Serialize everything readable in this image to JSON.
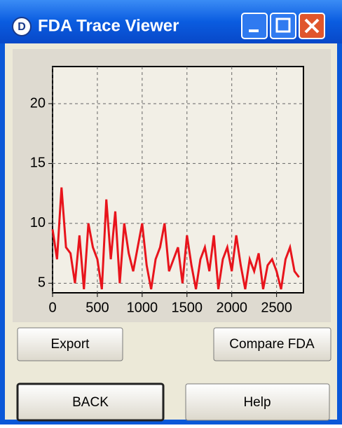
{
  "window": {
    "title": "FDA Trace Viewer",
    "icon_label": "D"
  },
  "buttons": {
    "export": "Export",
    "compare": "Compare FDA",
    "back": "BACK",
    "help": "Help"
  },
  "chart_data": {
    "type": "line",
    "x": [
      0,
      50,
      100,
      150,
      200,
      250,
      300,
      350,
      400,
      450,
      500,
      550,
      600,
      650,
      700,
      750,
      800,
      850,
      900,
      950,
      1000,
      1050,
      1100,
      1150,
      1200,
      1250,
      1300,
      1350,
      1400,
      1450,
      1500,
      1550,
      1600,
      1650,
      1700,
      1750,
      1800,
      1850,
      1900,
      1950,
      2000,
      2050,
      2100,
      2150,
      2200,
      2250,
      2300,
      2350,
      2400,
      2450,
      2500,
      2550,
      2600,
      2650,
      2700,
      2750
    ],
    "series": [
      {
        "color": "#e8141c",
        "values": [
          9.5,
          7,
          13,
          8,
          7.5,
          5,
          9,
          4.5,
          10,
          8,
          7,
          4.5,
          12,
          7,
          11,
          5,
          10,
          7.5,
          6,
          8,
          10,
          6.5,
          4.5,
          7,
          8,
          10,
          6,
          7,
          8,
          5,
          9,
          6.5,
          4.5,
          7,
          8,
          6,
          9,
          4.5,
          7,
          8,
          6,
          9,
          6.5,
          4.5,
          7,
          6,
          7.5,
          4.5,
          6.5,
          7,
          6,
          4.5,
          7,
          8,
          6,
          5.5
        ]
      }
    ],
    "xlim": [
      0,
      2800
    ],
    "ylim": [
      4.2,
      23.1
    ],
    "xticks": [
      0,
      500,
      1000,
      1500,
      2000,
      2500
    ],
    "yticks": [
      5,
      10,
      15,
      20
    ],
    "grid": true
  }
}
